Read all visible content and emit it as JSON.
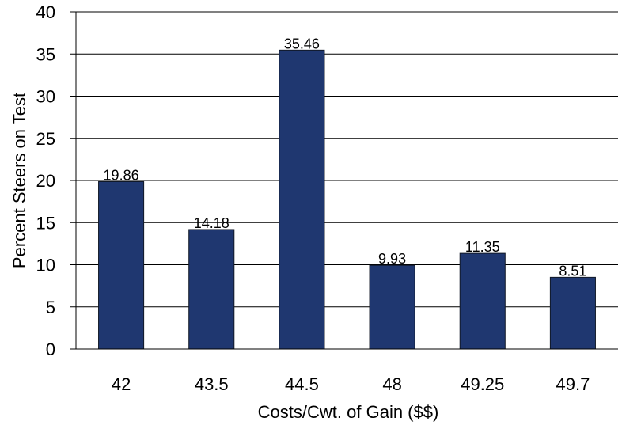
{
  "chart_data": {
    "type": "bar",
    "title": "",
    "xlabel": "Costs/Cwt. of Gain ($$)",
    "ylabel": "Percent Steers on Test",
    "categories": [
      "42",
      "43.5",
      "44.5",
      "48",
      "49.25",
      "49.7"
    ],
    "values": [
      19.86,
      14.18,
      35.46,
      9.93,
      11.35,
      8.51
    ],
    "data_labels": [
      "19.86",
      "14.18",
      "35.46",
      "9.93",
      "11.35",
      "8.51"
    ],
    "ylim": [
      0,
      40
    ],
    "yticks": [
      0,
      5,
      10,
      15,
      20,
      25,
      30,
      35,
      40
    ],
    "ytick_labels": [
      "0",
      "5",
      "10",
      "15",
      "20",
      "25",
      "30",
      "35",
      "40"
    ],
    "grid": true,
    "legend": "none",
    "bar_color": "#1f3770",
    "bar_edge_color": "#111827",
    "grid_color": "#000000"
  }
}
